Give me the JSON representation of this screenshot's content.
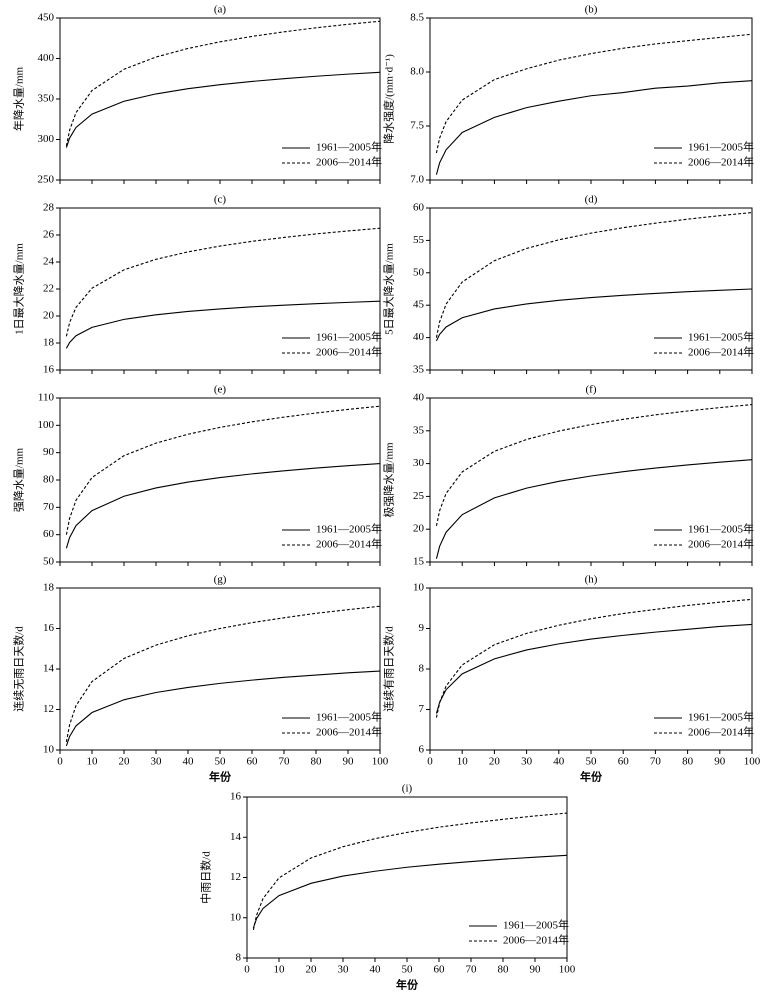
{
  "chart_data": [
    {
      "type": "line",
      "title": "(a)",
      "ylabel": "年降水量/mm",
      "x": [
        2,
        3,
        5,
        10,
        20,
        30,
        40,
        50,
        60,
        70,
        80,
        90,
        100
      ],
      "xlim": [
        0,
        100
      ],
      "xticks": [
        0,
        10,
        20,
        30,
        40,
        50,
        60,
        70,
        80,
        90,
        100
      ],
      "xtick_labels": false,
      "ylim": [
        250,
        450
      ],
      "yticks": [
        250,
        300,
        350,
        400,
        450
      ],
      "legend": "lower right",
      "series": [
        {
          "name": "1961—2005年",
          "color": "#000000",
          "dashed": false,
          "values": [
            290,
            301.8,
            314.9,
            331.4,
            347.2,
            356.3,
            362.7,
            367.7,
            371.7,
            375.1,
            378.1,
            380.7,
            383
          ]
        },
        {
          "name": "2006—2014年",
          "color": "#000000",
          "dashed": true,
          "values": [
            292,
            311.5,
            333.2,
            360.5,
            386.7,
            401.8,
            412.4,
            420.6,
            427.3,
            432.9,
            437.9,
            442.2,
            446
          ]
        }
      ]
    },
    {
      "type": "line",
      "title": "(b)",
      "ylabel": "降水强度/(mm·d⁻¹)",
      "x": [
        2,
        3,
        5,
        10,
        20,
        30,
        40,
        50,
        60,
        70,
        80,
        90,
        100
      ],
      "xlim": [
        0,
        100
      ],
      "xticks": [
        0,
        10,
        20,
        30,
        40,
        50,
        60,
        70,
        80,
        90,
        100
      ],
      "xtick_labels": false,
      "ylim": [
        7,
        8.5
      ],
      "yticks": [
        {
          "value": 7,
          "label": "7.0"
        },
        7.5,
        {
          "value": 8,
          "label": "8.0"
        },
        8.5
      ],
      "legend": "lower right",
      "series": [
        {
          "name": "1961—2005年",
          "color": "#000000",
          "dashed": false,
          "values": [
            7.05,
            7.16,
            7.28,
            7.44,
            7.58,
            7.67,
            7.73,
            7.78,
            7.81,
            7.85,
            7.87,
            7.9,
            7.92
          ]
        },
        {
          "name": "2006—2014年",
          "color": "#000000",
          "dashed": true,
          "values": [
            7.25,
            7.39,
            7.54,
            7.74,
            7.93,
            8.03,
            8.11,
            8.17,
            8.22,
            8.26,
            8.29,
            8.32,
            8.35
          ]
        }
      ]
    },
    {
      "type": "line",
      "title": "(c)",
      "ylabel": "1日最大降水量/mm",
      "x": [
        2,
        3,
        5,
        10,
        20,
        30,
        40,
        50,
        60,
        70,
        80,
        90,
        100
      ],
      "xlim": [
        0,
        100
      ],
      "xticks": [
        0,
        10,
        20,
        30,
        40,
        50,
        60,
        70,
        80,
        90,
        100
      ],
      "xtick_labels": false,
      "ylim": [
        16,
        28
      ],
      "yticks": [
        16,
        18,
        20,
        22,
        24,
        26,
        28
      ],
      "legend": "lower right",
      "series": [
        {
          "name": "1961—2005年",
          "color": "#000000",
          "dashed": false,
          "values": [
            17.6,
            18.04,
            18.54,
            19.16,
            19.75,
            20.09,
            20.34,
            20.52,
            20.68,
            20.8,
            20.91,
            21.01,
            21.1
          ]
        },
        {
          "name": "2006—2014年",
          "color": "#000000",
          "dashed": true,
          "values": [
            18.5,
            19.51,
            20.64,
            22.06,
            23.42,
            24.2,
            24.75,
            25.18,
            25.53,
            25.82,
            26.08,
            26.3,
            26.5
          ]
        }
      ]
    },
    {
      "type": "line",
      "title": "(d)",
      "ylabel": "5日最大降水量/mm",
      "x": [
        2,
        3,
        5,
        10,
        20,
        30,
        40,
        50,
        60,
        70,
        80,
        90,
        100
      ],
      "xlim": [
        0,
        100
      ],
      "xticks": [
        0,
        10,
        20,
        30,
        40,
        50,
        60,
        70,
        80,
        90,
        100
      ],
      "xtick_labels": false,
      "ylim": [
        35,
        60
      ],
      "yticks": [
        35,
        40,
        45,
        50,
        55,
        60
      ],
      "legend": "lower right",
      "series": [
        {
          "name": "1961—2005年",
          "color": "#000000",
          "dashed": false,
          "values": [
            39.5,
            40.51,
            41.64,
            43.06,
            44.42,
            45.2,
            45.75,
            46.18,
            46.53,
            46.82,
            47.08,
            47.3,
            47.5
          ]
        },
        {
          "name": "2006—2014年",
          "color": "#000000",
          "dashed": true,
          "values": [
            40,
            42.44,
            45.17,
            48.58,
            51.87,
            53.76,
            55.09,
            56.12,
            56.96,
            57.66,
            58.28,
            58.82,
            59.3
          ]
        }
      ]
    },
    {
      "type": "line",
      "title": "(e)",
      "ylabel": "强降水量/mm",
      "x": [
        2,
        3,
        5,
        10,
        20,
        30,
        40,
        50,
        60,
        70,
        80,
        90,
        100
      ],
      "xlim": [
        0,
        100
      ],
      "xticks": [
        0,
        10,
        20,
        30,
        40,
        50,
        60,
        70,
        80,
        90,
        100
      ],
      "xtick_labels": false,
      "ylim": [
        50,
        110
      ],
      "yticks": [
        50,
        60,
        70,
        80,
        90,
        100,
        110
      ],
      "legend": "lower right",
      "series": [
        {
          "name": "1961—2005年",
          "color": "#000000",
          "dashed": false,
          "values": [
            55,
            58.92,
            63.3,
            68.79,
            74.06,
            77.09,
            79.23,
            80.89,
            82.24,
            83.37,
            84.36,
            85.23,
            86
          ]
        },
        {
          "name": "2006—2014年",
          "color": "#000000",
          "dashed": true,
          "values": [
            60,
            65.95,
            72.58,
            80.91,
            88.9,
            93.5,
            96.74,
            99.25,
            101.29,
            103.01,
            104.51,
            105.83,
            107
          ]
        }
      ]
    },
    {
      "type": "line",
      "title": "(f)",
      "ylabel": "极强降水量/mm",
      "x": [
        2,
        3,
        5,
        10,
        20,
        30,
        40,
        50,
        60,
        70,
        80,
        90,
        100
      ],
      "xlim": [
        0,
        100
      ],
      "xticks": [
        0,
        10,
        20,
        30,
        40,
        50,
        60,
        70,
        80,
        90,
        100
      ],
      "xtick_labels": false,
      "ylim": [
        15,
        40
      ],
      "yticks": [
        15,
        20,
        25,
        30,
        35,
        40
      ],
      "legend": "lower right",
      "series": [
        {
          "name": "1961—2005年",
          "color": "#000000",
          "dashed": false,
          "values": [
            15.5,
            17.41,
            19.54,
            22.22,
            24.78,
            26.26,
            27.3,
            28.11,
            28.77,
            29.32,
            29.8,
            30.22,
            30.6
          ]
        },
        {
          "name": "2006—2014年",
          "color": "#000000",
          "dashed": true,
          "values": [
            20.5,
            22.84,
            25.45,
            28.73,
            31.88,
            33.68,
            34.96,
            35.95,
            36.75,
            37.43,
            38.02,
            38.54,
            39
          ]
        }
      ]
    },
    {
      "type": "line",
      "title": "(g)",
      "ylabel": "连续无雨日天数/d",
      "xlabel": "年份",
      "x": [
        2,
        3,
        5,
        10,
        20,
        30,
        40,
        50,
        60,
        70,
        80,
        90,
        100
      ],
      "xlim": [
        0,
        100
      ],
      "xticks": [
        0,
        10,
        20,
        30,
        40,
        50,
        60,
        70,
        80,
        90,
        100
      ],
      "xtick_labels": true,
      "ylim": [
        10,
        18
      ],
      "yticks": [
        10,
        12,
        14,
        16,
        18
      ],
      "legend": "lower right",
      "series": [
        {
          "name": "1961—2005年",
          "color": "#000000",
          "dashed": false,
          "values": [
            10.2,
            10.67,
            11.19,
            11.85,
            12.48,
            12.84,
            13.09,
            13.29,
            13.45,
            13.59,
            13.7,
            13.81,
            13.9
          ]
        },
        {
          "name": "2006—2014年",
          "color": "#000000",
          "dashed": true,
          "values": [
            10.4,
            11.25,
            12.19,
            13.38,
            14.52,
            15.18,
            15.64,
            16,
            16.29,
            16.53,
            16.75,
            16.93,
            17.1
          ]
        }
      ]
    },
    {
      "type": "line",
      "title": "(h)",
      "ylabel": "连续有雨日天数/d",
      "xlabel": "年份",
      "x": [
        2,
        3,
        5,
        10,
        20,
        30,
        40,
        50,
        60,
        70,
        80,
        90,
        100
      ],
      "xlim": [
        0,
        100
      ],
      "xticks": [
        0,
        10,
        20,
        30,
        40,
        50,
        60,
        70,
        80,
        90,
        100
      ],
      "xtick_labels": true,
      "ylim": [
        6,
        10
      ],
      "yticks": [
        6,
        7,
        8,
        9,
        10
      ],
      "legend": "lower right",
      "series": [
        {
          "name": "1961—2005年",
          "color": "#000000",
          "dashed": false,
          "values": [
            6.9,
            7.18,
            7.49,
            7.88,
            8.25,
            8.47,
            8.62,
            8.74,
            8.83,
            8.91,
            8.98,
            9.05,
            9.1
          ]
        },
        {
          "name": "2006—2014年",
          "color": "#000000",
          "dashed": true,
          "values": [
            6.8,
            7.17,
            7.58,
            8.1,
            8.6,
            8.88,
            9.08,
            9.24,
            9.37,
            9.47,
            9.57,
            9.65,
            9.72
          ]
        }
      ]
    },
    {
      "type": "line",
      "title": "(i)",
      "ylabel": "中雨日数/d",
      "xlabel": "年份",
      "x": [
        2,
        3,
        5,
        10,
        20,
        30,
        40,
        50,
        60,
        70,
        80,
        90,
        100
      ],
      "xlim": [
        0,
        100
      ],
      "xticks": [
        0,
        10,
        20,
        30,
        40,
        50,
        60,
        70,
        80,
        90,
        100
      ],
      "xtick_labels": true,
      "ylim": [
        8,
        16
      ],
      "yticks": [
        8,
        10,
        12,
        14,
        16
      ],
      "legend": "lower right",
      "series": [
        {
          "name": "1961—2005年",
          "color": "#000000",
          "dashed": false,
          "values": [
            9.5,
            9.96,
            10.46,
            11.1,
            11.71,
            12.07,
            12.31,
            12.51,
            12.66,
            12.79,
            12.91,
            13.01,
            13.1
          ]
        },
        {
          "name": "2006—2014年",
          "color": "#000000",
          "dashed": true,
          "values": [
            9.4,
            10.13,
            10.95,
            11.98,
            12.97,
            13.53,
            13.93,
            14.24,
            14.5,
            14.71,
            14.89,
            15.06,
            15.2
          ]
        }
      ]
    }
  ]
}
